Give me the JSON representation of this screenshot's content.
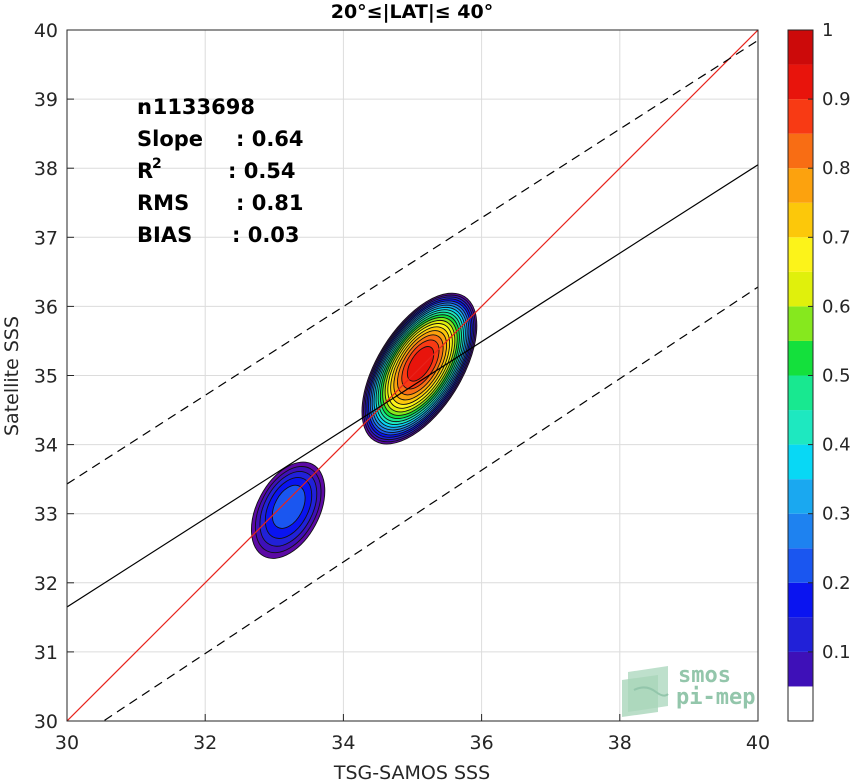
{
  "chart_data": {
    "type": "contour",
    "title": "20°≤|LAT|≤ 40°",
    "xlabel": "TSG-SAMOS SSS",
    "ylabel": "Satellite SSS",
    "xlim": [
      30,
      40
    ],
    "ylim": [
      30,
      40
    ],
    "xticks": [
      30,
      32,
      34,
      36,
      38,
      40
    ],
    "yticks": [
      30,
      31,
      32,
      33,
      34,
      35,
      36,
      37,
      38,
      39,
      40
    ],
    "grid": true,
    "stats": [
      {
        "label": "n",
        "value": ": 1133698"
      },
      {
        "label": "Slope",
        "value": ": 0.64"
      },
      {
        "label": "R",
        "sup": "2",
        "value": ": 0.54"
      },
      {
        "label": "RMS",
        "value": ": 0.81"
      },
      {
        "label": "BIAS",
        "value": ": 0.03"
      }
    ],
    "lines": [
      {
        "kind": "one-to-one",
        "color": "#e8231c",
        "dash": "solid",
        "points": [
          [
            30,
            30
          ],
          [
            40,
            40
          ]
        ]
      },
      {
        "kind": "regression",
        "color": "#000000",
        "dash": "solid",
        "points": [
          [
            30,
            31.65
          ],
          [
            40,
            38.05
          ]
        ]
      },
      {
        "kind": "upper-bound",
        "color": "#000000",
        "dash": "dashed",
        "points": [
          [
            30,
            33.43
          ],
          [
            40,
            39.85
          ]
        ]
      },
      {
        "kind": "lower-bound",
        "color": "#000000",
        "dash": "dashed",
        "points": [
          [
            30,
            29.65
          ],
          [
            40,
            36.28
          ]
        ]
      }
    ],
    "density_peaks": [
      {
        "x": 35.1,
        "y": 35.1,
        "peak": 0.97
      },
      {
        "x": 33.2,
        "y": 33.05,
        "peak": 0.25
      }
    ],
    "colorbar": {
      "min": 0,
      "max": 1,
      "ticks": [
        0.1,
        0.2,
        0.3,
        0.4,
        0.5,
        0.6,
        0.7,
        0.8,
        0.9,
        1
      ],
      "levels": 20,
      "colors": [
        "#ffffff",
        "#5c0aa5",
        "#3e10b8",
        "#2121d8",
        "#0a14f0",
        "#1a56f0",
        "#1e82f0",
        "#1aa8f0",
        "#08d8f5",
        "#1ee8c0",
        "#18e890",
        "#14e03c",
        "#86e81e",
        "#e0f00c",
        "#fcf31a",
        "#fcc80a",
        "#fca20e",
        "#f86d14",
        "#f83a14",
        "#e8140c",
        "#cc0a0a",
        "#8c0000"
      ]
    },
    "watermark": {
      "line1": "smos",
      "line2": "pi-mep"
    }
  }
}
